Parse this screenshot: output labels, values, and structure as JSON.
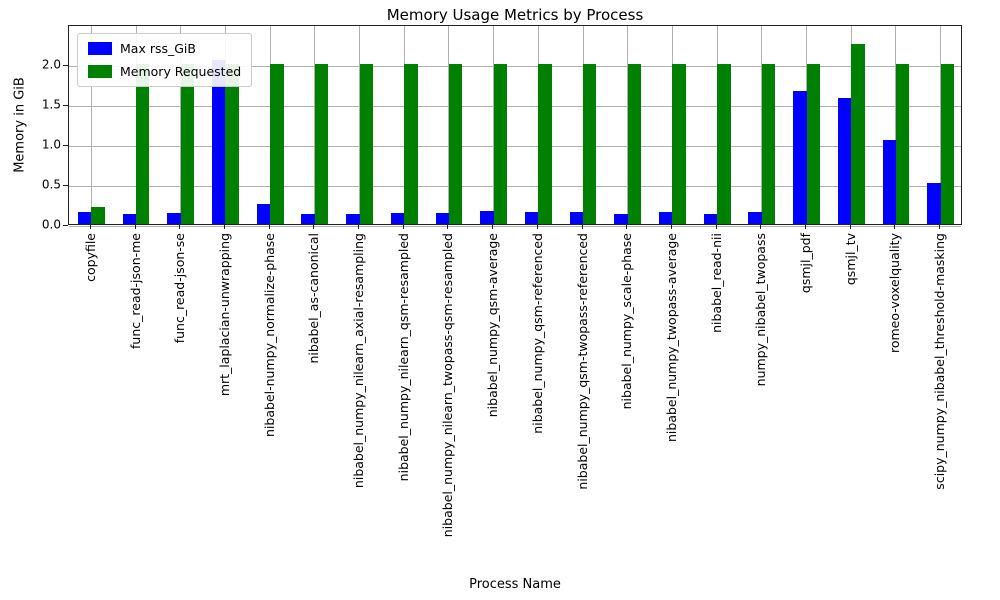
{
  "chart_data": {
    "type": "bar",
    "title": "Memory Usage Metrics by Process",
    "xlabel": "Process Name",
    "ylabel": "Memory in GiB",
    "ylim": [
      0,
      2.5
    ],
    "yticks": [
      0.0,
      0.5,
      1.0,
      1.5,
      2.0
    ],
    "grid": true,
    "legend_position": "upper left",
    "categories": [
      "copyfile",
      "func_read-json-me",
      "func_read-json-se",
      "mrt_laplacian-unwrapping",
      "nibabel-numpy_normalize-phase",
      "nibabel_as-canonical",
      "nibabel_numpy_nilearn_axial-resampling",
      "nibabel_numpy_nilearn_qsm-resampled",
      "nibabel_numpy_nilearn_twopass-qsm-resampled",
      "nibabel_numpy_qsm-average",
      "nibabel_numpy_qsm-referenced",
      "nibabel_numpy_qsm-twopass-referenced",
      "nibabel_numpy_scale-phase",
      "nibabel_numpy_twopass-average",
      "nibabel_read-nii",
      "numpy_nibabel_twopass",
      "qsmjl_pdf",
      "qsmjl_tv",
      "romeo-voxelquality",
      "scipy_numpy_nibabel_threshold-masking"
    ],
    "series": [
      {
        "name": "Max rss_GiB",
        "color": "#0000ff",
        "values": [
          0.15,
          0.13,
          0.14,
          2.05,
          0.25,
          0.13,
          0.13,
          0.14,
          0.14,
          0.16,
          0.15,
          0.15,
          0.13,
          0.15,
          0.13,
          0.15,
          1.66,
          1.57,
          1.05,
          0.51
        ]
      },
      {
        "name": "Memory Requested",
        "color": "#008000",
        "values": [
          0.21,
          2.0,
          2.0,
          2.0,
          2.0,
          2.0,
          2.0,
          2.0,
          2.0,
          2.0,
          2.0,
          2.0,
          2.0,
          2.0,
          2.0,
          2.0,
          2.0,
          2.25,
          2.0,
          2.0
        ]
      }
    ]
  }
}
